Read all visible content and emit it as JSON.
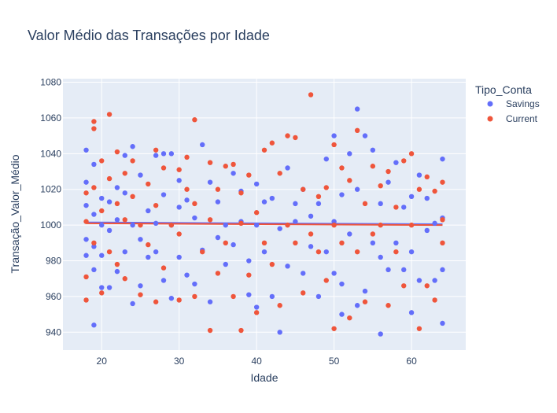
{
  "chart_data": {
    "type": "scatter",
    "title": "Valor Médio das Transações por Idade",
    "xlabel": "Idade",
    "ylabel": "Transação_Valor_Médio",
    "xlim": [
      15,
      67
    ],
    "ylim": [
      930,
      1082
    ],
    "xticks": [
      20,
      30,
      40,
      50,
      60
    ],
    "yticks": [
      940,
      960,
      980,
      1000,
      1020,
      1040,
      1060,
      1080
    ],
    "grid": true,
    "background": "#E5ECF6",
    "legend": {
      "title": "Tipo_Conta",
      "position": "right"
    },
    "series": [
      {
        "name": "Savings",
        "color": "#636EFA",
        "trend": {
          "x": [
            18,
            64
          ],
          "y": [
            1001.5,
            1000.5
          ]
        },
        "points": [
          [
            18,
            1042
          ],
          [
            18,
            1024
          ],
          [
            18,
            1011
          ],
          [
            18,
            983
          ],
          [
            18,
            992
          ],
          [
            19,
            944
          ],
          [
            19,
            1006
          ],
          [
            19,
            975
          ],
          [
            19,
            1034
          ],
          [
            19,
            988
          ],
          [
            20,
            965
          ],
          [
            20,
            1000
          ],
          [
            20,
            983
          ],
          [
            20,
            1015
          ],
          [
            21,
            1013
          ],
          [
            21,
            965
          ],
          [
            21,
            997
          ],
          [
            22,
            1021
          ],
          [
            22,
            974
          ],
          [
            22,
            1003
          ],
          [
            23,
            1039
          ],
          [
            23,
            1018
          ],
          [
            23,
            985
          ],
          [
            24,
            956
          ],
          [
            24,
            1044
          ],
          [
            24,
            1000
          ],
          [
            25,
            1028
          ],
          [
            25,
            966
          ],
          [
            25,
            992
          ],
          [
            26,
            982
          ],
          [
            26,
            1008
          ],
          [
            27,
            1039
          ],
          [
            27,
            1001
          ],
          [
            27,
            985
          ],
          [
            28,
            1040
          ],
          [
            28,
            969
          ],
          [
            28,
            1017
          ],
          [
            29,
            1040
          ],
          [
            29,
            959
          ],
          [
            29,
            1000
          ],
          [
            30,
            982
          ],
          [
            30,
            1025
          ],
          [
            30,
            1010
          ],
          [
            31,
            1014
          ],
          [
            31,
            972
          ],
          [
            32,
            967
          ],
          [
            32,
            1004
          ],
          [
            33,
            1045
          ],
          [
            33,
            986
          ],
          [
            34,
            1024
          ],
          [
            34,
            957
          ],
          [
            35,
            993
          ],
          [
            35,
            1013
          ],
          [
            36,
            978
          ],
          [
            36,
            1000
          ],
          [
            37,
            1029
          ],
          [
            37,
            989
          ],
          [
            38,
            1019
          ],
          [
            38,
            1002
          ],
          [
            39,
            961
          ],
          [
            39,
            980
          ],
          [
            40,
            1023
          ],
          [
            40,
            1000
          ],
          [
            40,
            954
          ],
          [
            41,
            1013
          ],
          [
            41,
            985
          ],
          [
            42,
            960
          ],
          [
            42,
            1015
          ],
          [
            43,
            940
          ],
          [
            43,
            998
          ],
          [
            44,
            1032
          ],
          [
            44,
            977
          ],
          [
            45,
            1002
          ],
          [
            45,
            1012
          ],
          [
            46,
            973
          ],
          [
            46,
            1020
          ],
          [
            47,
            1005
          ],
          [
            47,
            988
          ],
          [
            48,
            960
          ],
          [
            48,
            1012
          ],
          [
            49,
            1037
          ],
          [
            49,
            985
          ],
          [
            50,
            1050
          ],
          [
            50,
            1002
          ],
          [
            50,
            973
          ],
          [
            51,
            967
          ],
          [
            51,
            950
          ],
          [
            51,
            1017
          ],
          [
            52,
            1040
          ],
          [
            52,
            995
          ],
          [
            53,
            1065
          ],
          [
            53,
            955
          ],
          [
            53,
            1020
          ],
          [
            54,
            1050
          ],
          [
            54,
            963
          ],
          [
            55,
            1042
          ],
          [
            55,
            990
          ],
          [
            56,
            939
          ],
          [
            56,
            1012
          ],
          [
            56,
            982
          ],
          [
            57,
            1024
          ],
          [
            57,
            975
          ],
          [
            58,
            1035
          ],
          [
            58,
            990
          ],
          [
            59,
            1010
          ],
          [
            59,
            975
          ],
          [
            60,
            951
          ],
          [
            60,
            1016
          ],
          [
            60,
            985
          ],
          [
            61,
            969
          ],
          [
            61,
            1028
          ],
          [
            62,
            997
          ],
          [
            62,
            1015
          ],
          [
            63,
            969
          ],
          [
            63,
            1001
          ],
          [
            64,
            1037
          ],
          [
            64,
            945
          ],
          [
            64,
            1004
          ],
          [
            64,
            975
          ]
        ]
      },
      {
        "name": "Current",
        "color": "#EF553B",
        "trend": {
          "x": [
            18,
            64
          ],
          "y": [
            1001.0,
            1000.0
          ]
        },
        "points": [
          [
            18,
            958
          ],
          [
            18,
            1018
          ],
          [
            18,
            1002
          ],
          [
            18,
            971
          ],
          [
            19,
            1058
          ],
          [
            19,
            1054
          ],
          [
            19,
            1021
          ],
          [
            19,
            990
          ],
          [
            20,
            1036
          ],
          [
            20,
            962
          ],
          [
            20,
            1008
          ],
          [
            21,
            1062
          ],
          [
            21,
            1026
          ],
          [
            21,
            985
          ],
          [
            22,
            1041
          ],
          [
            22,
            978
          ],
          [
            22,
            1012
          ],
          [
            23,
            1029
          ],
          [
            23,
            970
          ],
          [
            23,
            1003
          ],
          [
            24,
            1036
          ],
          [
            24,
            1016
          ],
          [
            25,
            961
          ],
          [
            25,
            1000
          ],
          [
            26,
            1023
          ],
          [
            26,
            989
          ],
          [
            27,
            1042
          ],
          [
            27,
            957
          ],
          [
            27,
            1011
          ],
          [
            28,
            1032
          ],
          [
            28,
            976
          ],
          [
            29,
            1000
          ],
          [
            30,
            958
          ],
          [
            30,
            1031
          ],
          [
            30,
            995
          ],
          [
            31,
            1038
          ],
          [
            31,
            1020
          ],
          [
            32,
            1059
          ],
          [
            32,
            960
          ],
          [
            32,
            1012
          ],
          [
            33,
            985
          ],
          [
            34,
            941
          ],
          [
            34,
            1035
          ],
          [
            34,
            1003
          ],
          [
            35,
            1020
          ],
          [
            35,
            973
          ],
          [
            36,
            1033
          ],
          [
            36,
            990
          ],
          [
            37,
            1034
          ],
          [
            37,
            960
          ],
          [
            38,
            941
          ],
          [
            38,
            1001
          ],
          [
            38,
            1018
          ],
          [
            39,
            972
          ],
          [
            39,
            1028
          ],
          [
            40,
            951
          ],
          [
            40,
            1007
          ],
          [
            41,
            1042
          ],
          [
            41,
            990
          ],
          [
            42,
            1046
          ],
          [
            42,
            978
          ],
          [
            43,
            1029
          ],
          [
            43,
            955
          ],
          [
            44,
            1050
          ],
          [
            44,
            1000
          ],
          [
            45,
            1049
          ],
          [
            45,
            990
          ],
          [
            46,
            962
          ],
          [
            46,
            1020
          ],
          [
            47,
            1073
          ],
          [
            47,
            995
          ],
          [
            48,
            1016
          ],
          [
            48,
            985
          ],
          [
            49,
            1021
          ],
          [
            49,
            969
          ],
          [
            50,
            942
          ],
          [
            50,
            1045
          ],
          [
            50,
            1000
          ],
          [
            51,
            1032
          ],
          [
            51,
            990
          ],
          [
            52,
            1025
          ],
          [
            52,
            948
          ],
          [
            53,
            1053
          ],
          [
            53,
            985
          ],
          [
            54,
            1012
          ],
          [
            54,
            957
          ],
          [
            55,
            1033
          ],
          [
            55,
            995
          ],
          [
            56,
            1000
          ],
          [
            56,
            1022
          ],
          [
            57,
            955
          ],
          [
            57,
            1030
          ],
          [
            58,
            985
          ],
          [
            58,
            1010
          ],
          [
            59,
            1036
          ],
          [
            59,
            966
          ],
          [
            60,
            1040
          ],
          [
            60,
            1000
          ],
          [
            61,
            942
          ],
          [
            61,
            1020
          ],
          [
            62,
            1027
          ],
          [
            62,
            966
          ],
          [
            63,
            1019
          ],
          [
            63,
            958
          ],
          [
            64,
            1024
          ],
          [
            64,
            990
          ],
          [
            64,
            1003
          ]
        ]
      }
    ]
  }
}
